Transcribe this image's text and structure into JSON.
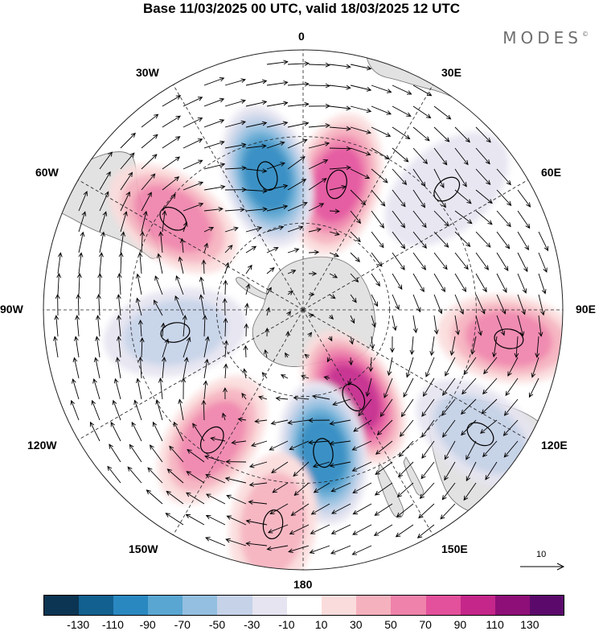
{
  "title": "Base 11/03/2025 00 UTC, valid 18/03/2025 12 UTC",
  "brand": "MODES",
  "brand_mark": "©",
  "longitude_labels": [
    "0",
    "30E",
    "60E",
    "90E",
    "120E",
    "150E",
    "180",
    "150W",
    "120W",
    "90W",
    "60W",
    "30W"
  ],
  "reference_vector": {
    "label": "10",
    "icon": "arrow-right-icon"
  },
  "colorbar": {
    "ticks": [
      "-130",
      "-110",
      "-90",
      "-70",
      "-50",
      "-30",
      "-10",
      "10",
      "30",
      "50",
      "70",
      "90",
      "110",
      "130"
    ],
    "colors": [
      "#0b3552",
      "#12608f",
      "#2a88c0",
      "#5aa6d2",
      "#94bfe0",
      "#c5d2e8",
      "#e5e4f0",
      "#ffffff",
      "#fbdcdc",
      "#f6b1be",
      "#ef82aa",
      "#e3509b",
      "#c4268a",
      "#8e0f78",
      "#5b0a6c"
    ]
  },
  "map_colors": {
    "land": "#e2e2e2",
    "coast": "#707070",
    "grid": "#222222",
    "ocean": "#ffffff"
  },
  "chart_data": {
    "type": "heatmap",
    "projection": "south-polar-stereographic",
    "units_legend": "-130 ... 130",
    "features": [
      {
        "type": "positive",
        "lon": 15,
        "colat": 45,
        "value": 85
      },
      {
        "type": "negative",
        "lon": -15,
        "colat": 48,
        "value": -100
      },
      {
        "type": "positive",
        "lon": -55,
        "colat": 55,
        "value": 75
      },
      {
        "type": "positive",
        "lon": 98,
        "colat": 72,
        "value": 65
      },
      {
        "type": "positive",
        "lon": 150,
        "colat": 35,
        "value": 100
      },
      {
        "type": "negative",
        "lon": 172,
        "colat": 50,
        "value": -110
      },
      {
        "type": "positive",
        "lon": -145,
        "colat": 55,
        "value": 60
      },
      {
        "type": "positive",
        "lon": -172,
        "colat": 75,
        "value": 40
      },
      {
        "type": "negative",
        "lon": -100,
        "colat": 45,
        "value": -55
      },
      {
        "type": "negative",
        "lon": 50,
        "colat": 65,
        "value": -35
      },
      {
        "type": "negative",
        "lon": 125,
        "colat": 75,
        "value": -45
      }
    ]
  }
}
